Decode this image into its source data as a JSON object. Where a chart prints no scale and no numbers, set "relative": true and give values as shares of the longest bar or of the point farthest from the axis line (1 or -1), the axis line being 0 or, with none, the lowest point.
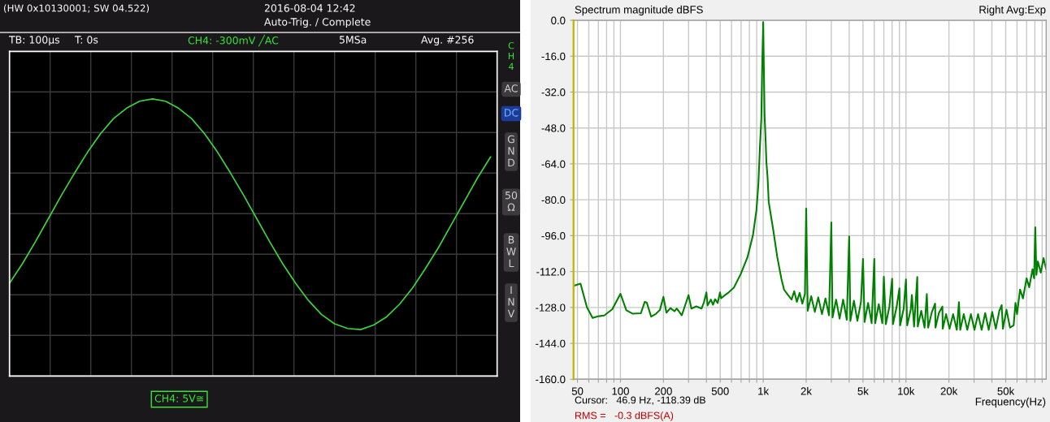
{
  "chart_data": [
    {
      "type": "line",
      "relative": true,
      "title": "(HW 0x10130001; SW 04.522)",
      "annotations": [
        "2016-08-04 12:42",
        "Auto-Trig. / Complete",
        "TB: 100µs",
        "T: 0s",
        "CH4: -300mV ╱AC",
        "5MSa",
        "Avg. #256",
        "CH4",
        "AC",
        "DC",
        "GND",
        "50 Ω",
        "BWL",
        "INV",
        "CH4: 5V≅"
      ],
      "categories": [
        null,
        null,
        null,
        null,
        null,
        null,
        null,
        null,
        null,
        null,
        null,
        null,
        null,
        null,
        null,
        null,
        null,
        null,
        null,
        null,
        null,
        null,
        null,
        null,
        null,
        null,
        null,
        null,
        null,
        null,
        null,
        null,
        null,
        null,
        null,
        null,
        null,
        null
      ],
      "series": [
        {
          "color": "#3cd43c",
          "values": [
            -0.6,
            -0.43,
            -0.24,
            -0.04,
            0.16,
            0.35,
            0.53,
            0.69,
            0.82,
            0.91,
            0.97,
            0.99,
            0.97,
            0.91,
            0.82,
            0.69,
            0.53,
            0.35,
            0.16,
            -0.04,
            -0.24,
            -0.43,
            -0.6,
            -0.75,
            -0.87,
            -0.95,
            -0.99,
            -1.0,
            -0.96,
            -0.89,
            -0.78,
            -0.64,
            -0.47,
            -0.29,
            -0.09,
            0.11,
            0.31,
            0.49
          ]
        }
      ],
      "grid": true
    },
    {
      "type": "line",
      "title": "Spectrum magnitude dBFS",
      "subtitle": "Right Avg:Exp",
      "xlabel": "Frequency(Hz)",
      "annotations": [
        "Cursor:   46.9 Hz, -118.39 dB",
        "RMS =   -0.3 dBFS(A)"
      ],
      "log": "x",
      "xlim": [
        46.9,
        96000
      ],
      "ylim": [
        -160,
        0
      ],
      "xticks": [
        50,
        {
          "value": 60,
          "label": null
        },
        {
          "value": 70,
          "label": null
        },
        {
          "value": 80,
          "label": null
        },
        {
          "value": 90,
          "label": null
        },
        100,
        200,
        {
          "value": 300,
          "label": null
        },
        {
          "value": 400,
          "label": null
        },
        500,
        {
          "value": 600,
          "label": null
        },
        {
          "value": 700,
          "label": null
        },
        {
          "value": 800,
          "label": null
        },
        {
          "value": 900,
          "label": null
        },
        {
          "value": 1000,
          "label": "1k"
        },
        {
          "value": 2000,
          "label": "2k"
        },
        {
          "value": 3000,
          "label": null
        },
        {
          "value": 4000,
          "label": null
        },
        {
          "value": 5000,
          "label": "5k"
        },
        {
          "value": 6000,
          "label": null
        },
        {
          "value": 7000,
          "label": null
        },
        {
          "value": 8000,
          "label": null
        },
        {
          "value": 9000,
          "label": null
        },
        {
          "value": 10000,
          "label": "10k"
        },
        {
          "value": 20000,
          "label": "20k"
        },
        {
          "value": 30000,
          "label": null
        },
        {
          "value": 40000,
          "label": null
        },
        {
          "value": 50000,
          "label": "50k"
        },
        {
          "value": 60000,
          "label": null
        },
        {
          "value": 70000,
          "label": null
        },
        {
          "value": 80000,
          "label": null
        },
        {
          "value": 90000,
          "label": null
        }
      ],
      "yticks": [
        {
          "value": 0,
          "label": "0.0"
        },
        {
          "value": -16,
          "label": "-16.0"
        },
        {
          "value": -32,
          "label": "-32.0"
        },
        {
          "value": -48,
          "label": "-48.0"
        },
        {
          "value": -64,
          "label": "-64.0"
        },
        {
          "value": -80,
          "label": "-80.0"
        },
        {
          "value": -96,
          "label": "-96.0"
        },
        {
          "value": -112,
          "label": "-112.0"
        },
        {
          "value": -128,
          "label": "-128.0"
        },
        {
          "value": -144,
          "label": "-144.0"
        },
        {
          "value": -160,
          "label": "-160.0"
        }
      ],
      "grid": true,
      "ref_lines": [
        {
          "axis": "x",
          "value": 46.9,
          "color": "#c8b400"
        }
      ],
      "series": [
        {
          "color": "#008000",
          "x": [
            46.9,
            52.5,
            58.2,
            63.8,
            70.6,
            77,
            87.7,
            100,
            110,
            122,
            139,
            148,
            153,
            164,
            177,
            189,
            200,
            210,
            224,
            239,
            248,
            269,
            285,
            300,
            314,
            340,
            370,
            384,
            400,
            408,
            430,
            445,
            460,
            480,
            498,
            507,
            540,
            573,
            624,
            696,
            776,
            847,
            897,
            925,
            949,
            970,
            984,
            1000,
            1022,
            1040,
            1053,
            1073,
            1093,
            1176,
            1255,
            1341,
            1400,
            1494,
            1580,
            1650,
            1720,
            1800,
            1880,
            1960,
            2000,
            2050,
            2170,
            2300,
            2430,
            2580,
            2730,
            2890,
            3000,
            3060,
            3240,
            3430,
            3630,
            3850,
            4000,
            4080,
            4320,
            4570,
            4840,
            5000,
            5130,
            5430,
            5750,
            6000,
            6090,
            6450,
            6830,
            7000,
            7230,
            7660,
            8000,
            8110,
            8590,
            9000,
            9100,
            9640,
            10000,
            10200,
            10800,
            11000,
            11400,
            12000,
            12100,
            12800,
            13500,
            14000,
            14300,
            15200,
            16000,
            16100,
            17000,
            18000,
            18100,
            19100,
            20200,
            21400,
            22700,
            23500,
            24000,
            25400,
            26900,
            28500,
            30200,
            32000,
            33900,
            35900,
            38000,
            40200,
            42600,
            45100,
            46800,
            47800,
            50600,
            53600,
            56800,
            58500,
            60000,
            63000,
            66000,
            70000,
            73000,
            77000,
            79000,
            80500,
            82000,
            84000,
            88000,
            92000,
            96000
          ],
          "values": [
            -118.4,
            -117.4,
            -127.9,
            -132.7,
            -131.9,
            -131.6,
            -128.8,
            -121.9,
            -129.3,
            -130.8,
            -130.6,
            -125.5,
            -125.9,
            -132.1,
            -130.9,
            -129.1,
            -123.3,
            -130.3,
            -128.3,
            -129.7,
            -128.5,
            -131.5,
            -126.7,
            -122.5,
            -128.5,
            -127.5,
            -128.5,
            -125.8,
            -121.3,
            -127.1,
            -124.5,
            -126.8,
            -124.3,
            -126,
            -121.3,
            -123.9,
            -122.5,
            -121.3,
            -119.1,
            -113.1,
            -105.6,
            -95.9,
            -84.5,
            -73.0,
            -56.1,
            -44.0,
            -19.9,
            -0.8,
            -42.2,
            -53.7,
            -63.3,
            -70.0,
            -81.0,
            -93.5,
            -105.6,
            -115.2,
            -120.1,
            -122.5,
            -124.5,
            -120.8,
            -125.5,
            -121.5,
            -126.3,
            -122.0,
            -83.9,
            -129.5,
            -123,
            -130,
            -123.5,
            -131,
            -124,
            -131.5,
            -90.1,
            -132.5,
            -124.5,
            -133,
            -124.5,
            -133.5,
            -96.3,
            -134,
            -125,
            -134,
            -125.5,
            -106.4,
            -134.5,
            -126,
            -135,
            -106.4,
            -135,
            -126.5,
            -135,
            -114.3,
            -135.5,
            -127.5,
            -115.2,
            -135.5,
            -128,
            -119.5,
            -136,
            -128.5,
            -115.5,
            -136,
            -129,
            -122.5,
            -136.5,
            -114.4,
            -136.5,
            -129.5,
            -137,
            -122,
            -137,
            -130,
            -126.3,
            -137,
            -130.5,
            -127.6,
            -137.5,
            -131,
            -137.5,
            -131,
            -138,
            -125.6,
            -138,
            -131,
            -138,
            -131,
            -138,
            -131,
            -138,
            -130.5,
            -138,
            -130,
            -137.5,
            -129.5,
            -127,
            -137.5,
            -129,
            -137,
            -136,
            -126,
            -131,
            -120,
            -124,
            -115,
            -119,
            -111,
            -115,
            -92.3,
            -113.5,
            -107.5,
            -112.5,
            -106,
            -111
          ]
        }
      ]
    }
  ]
}
